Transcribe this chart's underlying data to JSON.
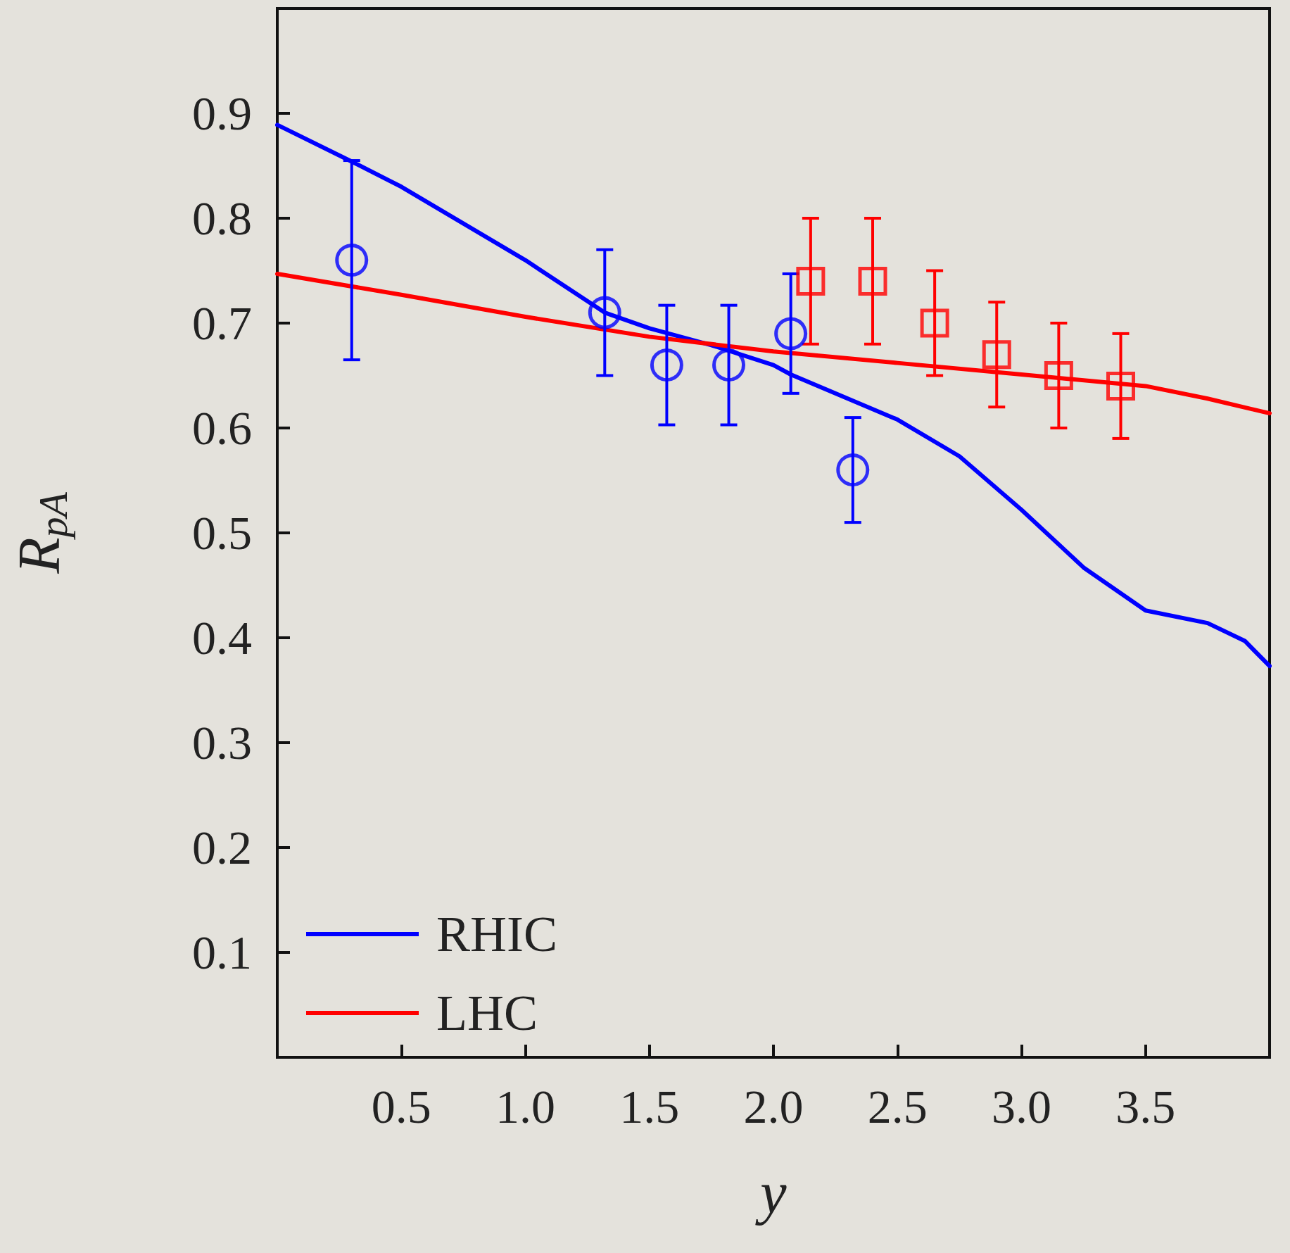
{
  "chart_data": {
    "type": "scatter",
    "xlabel": "y",
    "ylabel": "R$_{pA}$",
    "xlim": [
      0,
      4
    ],
    "ylim": [
      0,
      1
    ],
    "xticks": [
      {
        "value": 0,
        "label": null
      },
      0.5,
      {
        "value": 1,
        "label": "1.0"
      },
      1.5,
      {
        "value": 2,
        "label": "2.0"
      },
      2.5,
      {
        "value": 3,
        "label": "3.0"
      },
      3.5,
      {
        "value": 4,
        "label": null
      }
    ],
    "yticks": [
      {
        "value": 0,
        "label": null
      },
      0.1,
      0.2,
      0.3,
      0.4,
      0.5,
      0.6,
      0.7,
      0.8,
      0.9,
      {
        "value": 1,
        "label": null
      }
    ],
    "grid": false,
    "legend": "bottom left",
    "series": [
      {
        "name": "RHIC",
        "type": "line",
        "marker": "none",
        "line_style": "solid",
        "color": "#0000ff",
        "x": [
          0,
          0.3,
          0.5,
          1.0,
          1.32,
          1.5,
          1.75,
          2.0,
          2.07,
          2.5,
          2.75,
          3.0,
          3.25,
          3.5,
          3.75,
          3.9,
          4.0
        ],
        "values": [
          0.889,
          0.854,
          0.83,
          0.76,
          0.71,
          0.695,
          0.679,
          0.66,
          0.651,
          0.608,
          0.573,
          0.522,
          0.467,
          0.426,
          0.414,
          0.397,
          0.373
        ]
      },
      {
        "name": "LHC",
        "type": "line",
        "marker": "none",
        "line_style": "solid",
        "color": "#ff0000",
        "x": [
          0,
          0.5,
          1.0,
          1.5,
          2.0,
          2.5,
          3.0,
          3.5,
          3.75,
          4.0
        ],
        "values": [
          0.747,
          0.727,
          0.706,
          0.687,
          0.673,
          0.662,
          0.651,
          0.64,
          0.628,
          0.614
        ]
      },
      {
        "marker": "circle",
        "color": "#0000ff",
        "x": [
          0.3,
          1.32,
          1.57,
          1.82,
          2.07,
          2.32
        ],
        "values": [
          0.76,
          0.71,
          0.66,
          0.66,
          0.69,
          0.56
        ],
        "errors": [
          0.095,
          0.06,
          0.057,
          0.057,
          0.057,
          0.05
        ]
      },
      {
        "marker": "square",
        "color": "#ff0000",
        "x": [
          2.15,
          2.4,
          2.65,
          2.9,
          3.15,
          3.4
        ],
        "values": [
          0.74,
          0.74,
          0.7,
          0.67,
          0.65,
          0.64
        ],
        "errors": [
          0.06,
          0.06,
          0.05,
          0.05,
          0.05,
          0.05
        ]
      }
    ]
  }
}
